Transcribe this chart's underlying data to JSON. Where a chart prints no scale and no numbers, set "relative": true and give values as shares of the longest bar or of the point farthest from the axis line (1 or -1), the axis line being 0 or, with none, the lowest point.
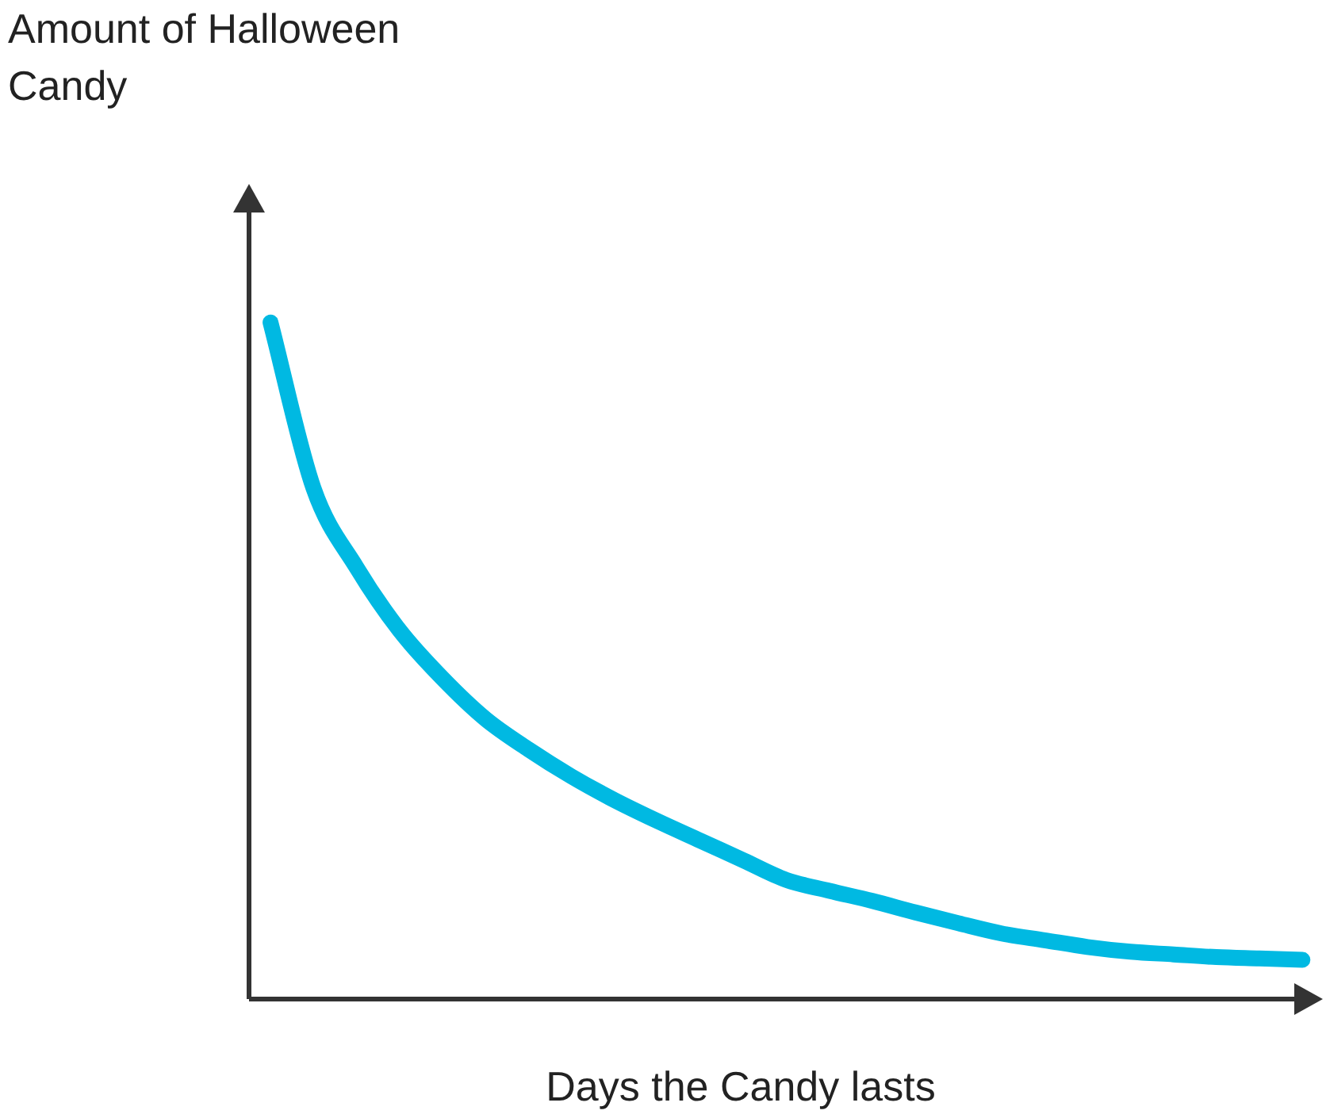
{
  "chart_data": {
    "type": "line",
    "annotations": [
      "Amount of Halloween Candy"
    ],
    "xlabel": "Days the Candy lasts",
    "relative": true,
    "categories": [
      null,
      null,
      null,
      null,
      null,
      null,
      null,
      null,
      null,
      null,
      null,
      null,
      null,
      null,
      null,
      null,
      null,
      null,
      null,
      null,
      null,
      null,
      null,
      null,
      null
    ],
    "series": [
      {
        "color": "#00b9e2",
        "values": [
          1,
          0.755,
          0.638,
          0.545,
          0.474,
          0.414,
          0.369,
          0.329,
          0.294,
          0.263,
          0.234,
          0.205,
          0.176,
          0.16,
          0.145,
          0.128,
          0.112,
          0.097,
          0.087,
          0.077,
          0.07,
          0.066,
          0.062,
          0.06,
          0.058
        ]
      }
    ],
    "marker": "none",
    "line_style": "solid",
    "legend": false
  }
}
